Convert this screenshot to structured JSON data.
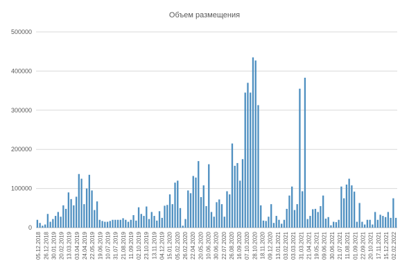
{
  "chart_data": {
    "type": "bar",
    "title": "Объем размещения",
    "xlabel": "",
    "ylabel": "",
    "ylim": [
      0,
      500000
    ],
    "yticks": [
      "0",
      "100000",
      "200000",
      "300000",
      "400000",
      "500000"
    ],
    "ytick_values": [
      0,
      100000,
      200000,
      300000,
      400000,
      500000
    ],
    "grid": true,
    "legend": "none",
    "bar_color": "#4e8fc0",
    "grid_color": "#d9d9d9",
    "x_tick_labels": [
      "05.12.2018",
      "26.12.2018",
      "30.01.2019",
      "20.02.2019",
      "13.03.2019",
      "03.04.2019",
      "24.04.2019",
      "22.05.2019",
      "19.06.2019",
      "10.07.2019",
      "31.07.2019",
      "21.08.2019",
      "11.09.2019",
      "02.10.2019",
      "23.10.2019",
      "13.11.2019",
      "04.12.2019",
      "15.01.2020",
      "05.02.2020",
      "26.02.2020",
      "22.04.2020",
      "20.05.2020",
      "10.06.2020",
      "30.06.2020",
      "22.07.2020",
      "26.08.2020",
      "16.09.2020",
      "07.10.2020",
      "28.10.2020",
      "18.11.2020",
      "09.12.2020",
      "13.01.2021",
      "03.02.2021",
      "03.03.2021",
      "31.03.2021",
      "21.04.2021",
      "19.05.2021",
      "09.06.2021",
      "30.06.2021",
      "21.07.2021",
      "11.08.2021",
      "01.09.2021",
      "22.09.2021",
      "20.10.2021",
      "17.11.2021",
      "15.12.2021",
      "02.02.2022"
    ],
    "values": [
      20000,
      12000,
      5000,
      8000,
      35000,
      15000,
      22000,
      30000,
      40000,
      28000,
      57000,
      48000,
      90000,
      73000,
      57000,
      79000,
      137000,
      125000,
      60000,
      100000,
      135000,
      95000,
      45000,
      67000,
      20000,
      17000,
      15000,
      15000,
      17000,
      20000,
      20000,
      20000,
      20000,
      24000,
      20000,
      15000,
      20000,
      32000,
      18000,
      52000,
      35000,
      30000,
      54000,
      22000,
      40000,
      30000,
      18000,
      42000,
      25000,
      56000,
      58000,
      85000,
      60000,
      115000,
      120000,
      50000,
      5000,
      22000,
      95000,
      88000,
      132000,
      128000,
      170000,
      78000,
      108000,
      55000,
      162000,
      40000,
      28000,
      65000,
      72000,
      60000,
      28000,
      93000,
      85000,
      215000,
      158000,
      165000,
      120000,
      175000,
      345000,
      370000,
      345000,
      435000,
      427000,
      313000,
      57000,
      18000,
      17000,
      28000,
      60000,
      12000,
      30000,
      20000,
      10000,
      20000,
      48000,
      82000,
      105000,
      45000,
      60000,
      355000,
      93000,
      383000,
      22000,
      30000,
      47000,
      48000,
      40000,
      55000,
      82000,
      23000,
      27000,
      6000,
      15000,
      14000,
      20000,
      105000,
      75000,
      110000,
      125000,
      108000,
      92000,
      15000,
      63000,
      15000,
      8000,
      20000,
      20000,
      8000,
      40000,
      20000,
      33000,
      30000,
      27000,
      40000,
      25000,
      75000,
      25000
    ]
  }
}
